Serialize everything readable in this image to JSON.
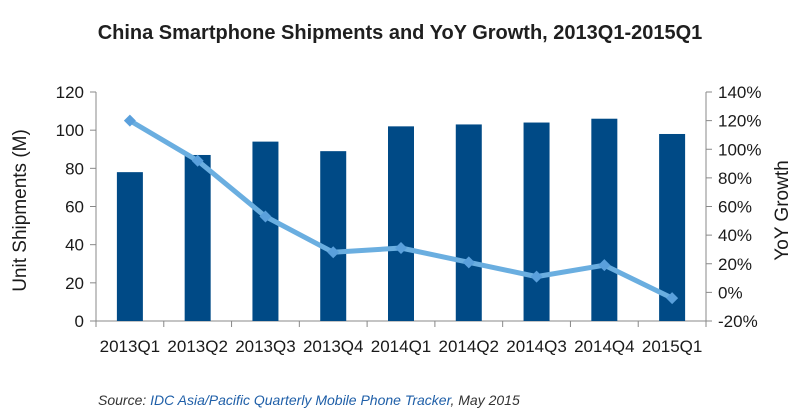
{
  "chart_data": {
    "type": "bar",
    "title": "China Smartphone Shipments and YoY Growth, 2013Q1-2015Q1",
    "categories": [
      "2013Q1",
      "2013Q2",
      "2013Q3",
      "2013Q4",
      "2014Q1",
      "2014Q2",
      "2014Q3",
      "2014Q4",
      "2015Q1"
    ],
    "series": [
      {
        "type": "bar",
        "axis": "left",
        "values": [
          78,
          87,
          94,
          89,
          102,
          103,
          104,
          106,
          98
        ]
      },
      {
        "type": "line",
        "axis": "right",
        "values": [
          120,
          92,
          53,
          28,
          31,
          21,
          11,
          19,
          -4
        ]
      }
    ],
    "ylabel": "Unit Shipments (M)",
    "ylabel_right": "YoY Growth",
    "ylim": [
      0,
      120
    ],
    "yticks": [
      "0",
      "20",
      "40",
      "60",
      "80",
      "100",
      "120"
    ],
    "ylim_right": [
      -20,
      140
    ],
    "yticks_right": [
      "-20%",
      "0%",
      "20%",
      "40%",
      "60%",
      "80%",
      "100%",
      "120%",
      "140%"
    ],
    "grid": false,
    "colors": {
      "bar": "#004a86",
      "line": "#6aaee0",
      "line_marker": "#5aa0dc"
    }
  },
  "source": {
    "label": "Source: ",
    "name": "IDC Asia/Pacific Quarterly Mobile Phone Tracker",
    "date": ", May 2015"
  }
}
